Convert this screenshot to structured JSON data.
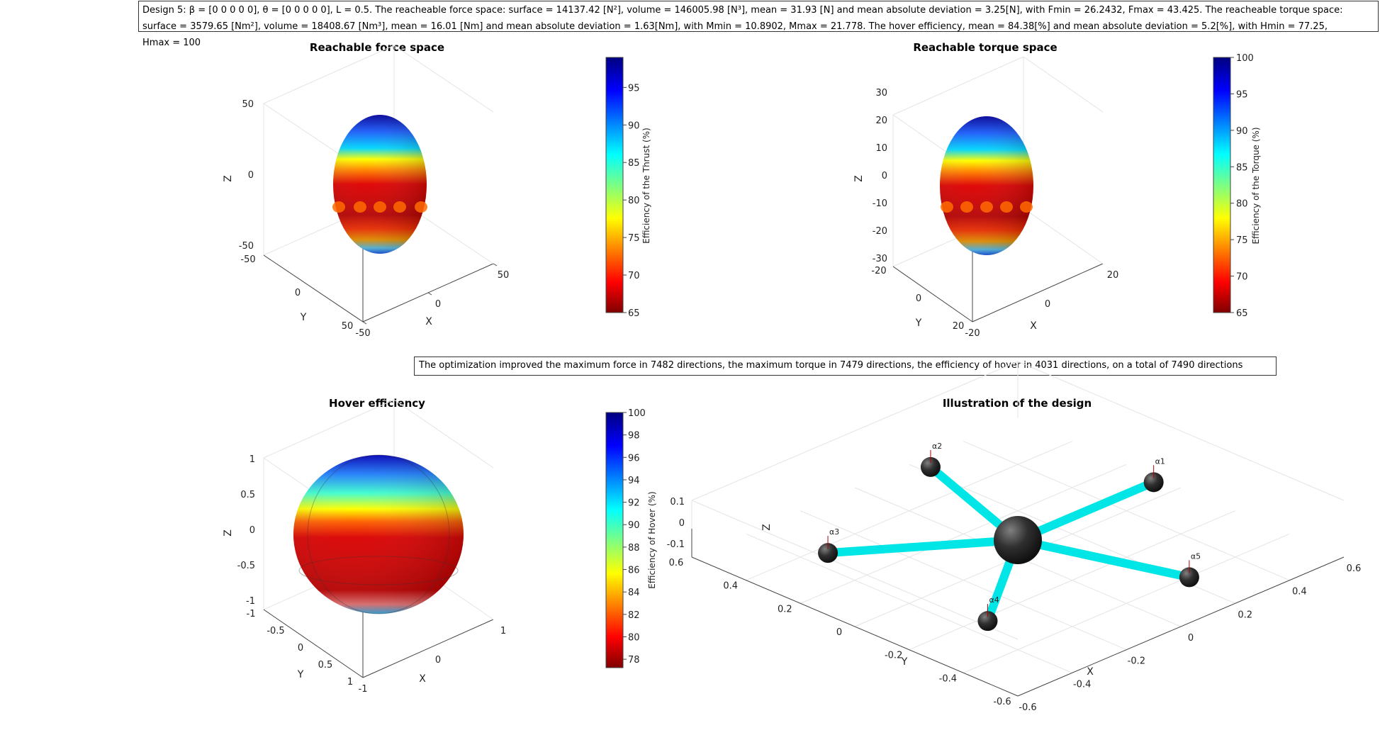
{
  "header": {
    "line1": "Design 5: β = [0 0 0 0 0], θ = [0 0 0 0 0], L = 0.5. The reacheable force space: surface = 14137.42 [N²], volume = 146005.98 [N³], mean = 31.93 [N] and mean absolute deviation = 3.25[N], with Fmin = 26.2432, Fmax = 43.425. The reacheable torque space:",
    "line2": "surface = 3579.65 [Nm²], volume = 18408.67 [Nm³], mean = 16.01 [Nm] and mean absolute deviation = 1.63[Nm], with Mmin = 10.8902, Mmax = 21.778. The hover efficiency, mean = 84.38[%] and mean absolute deviation = 5.2[%], with Hmin = 77.25,",
    "line3": "Hmax = 100"
  },
  "annotation": "The optimization improved the maximum force in 7482 directions, the maximum torque in 7479 directions, the efficiency of hover in 4031 directions, on a total of 7490 directions",
  "colors": {
    "jet_low": "#800000",
    "jet_mid_red": "#ff0000",
    "jet_yellow": "#ffff00",
    "jet_cyan": "#00ffff",
    "jet_blue": "#0000ff",
    "jet_high": "#000080",
    "arm": "#00e5e5",
    "motor": "#2a2a2a"
  },
  "chart_data": [
    {
      "type": "surface3d",
      "title": "Reachable force space",
      "xlabel": "X",
      "ylabel": "Y",
      "zlabel": "Z",
      "xticks": [
        "-50",
        "0",
        "50"
      ],
      "yticks": [
        "-50",
        "0",
        "50"
      ],
      "zticks": [
        "-50",
        "0",
        "50"
      ],
      "colorbar": {
        "label": "Efficiency of the Thrust (%)",
        "ticks": [
          "65",
          "70",
          "75",
          "80",
          "85",
          "90",
          "95"
        ],
        "range": [
          65,
          99
        ]
      }
    },
    {
      "type": "surface3d",
      "title": "Reachable torque space",
      "xlabel": "X",
      "ylabel": "Y",
      "zlabel": "Z",
      "xticks": [
        "-20",
        "0",
        "20"
      ],
      "yticks": [
        "-20",
        "0",
        "20"
      ],
      "zticks": [
        "-30",
        "-20",
        "-10",
        "0",
        "10",
        "20",
        "30"
      ],
      "colorbar": {
        "label": "Efficiency of the Torque (%)",
        "ticks": [
          "65",
          "70",
          "75",
          "80",
          "85",
          "90",
          "95",
          "100"
        ],
        "range": [
          65,
          100
        ]
      }
    },
    {
      "type": "surface3d",
      "title": "Hover efficiency",
      "xlabel": "X",
      "ylabel": "Y",
      "zlabel": "Z",
      "xticks": [
        "-1",
        "0",
        "1"
      ],
      "yticks": [
        "-1",
        "-0.5",
        "0",
        "0.5",
        "1"
      ],
      "zticks": [
        "-1",
        "-0.5",
        "0",
        "0.5",
        "1"
      ],
      "colorbar": {
        "label": "Efficiency of Hover (%)",
        "ticks": [
          "78",
          "80",
          "82",
          "84",
          "86",
          "88",
          "90",
          "92",
          "94",
          "96",
          "98",
          "100"
        ],
        "range": [
          77.25,
          100
        ]
      }
    },
    {
      "type": "scatter3d",
      "title": "Illustration of the design",
      "xlabel": "X",
      "ylabel": "Y",
      "zlabel": "Z",
      "xticks": [
        "-0.6",
        "-0.4",
        "-0.2",
        "0",
        "0.2",
        "0.4",
        "0.6"
      ],
      "yticks": [
        "-0.6",
        "-0.4",
        "-0.2",
        "0",
        "0.2",
        "0.4",
        "0.6"
      ],
      "zticks": [
        "-0.1",
        "0",
        "0.1"
      ],
      "rotors": [
        {
          "label": "α1",
          "x": 0.5,
          "y": 0.0,
          "z": 0
        },
        {
          "label": "α2",
          "x": 0.155,
          "y": 0.476,
          "z": 0
        },
        {
          "label": "α3",
          "x": -0.405,
          "y": 0.294,
          "z": 0
        },
        {
          "label": "α4",
          "x": -0.405,
          "y": -0.294,
          "z": 0
        },
        {
          "label": "α5",
          "x": 0.155,
          "y": -0.476,
          "z": 0
        }
      ]
    }
  ]
}
